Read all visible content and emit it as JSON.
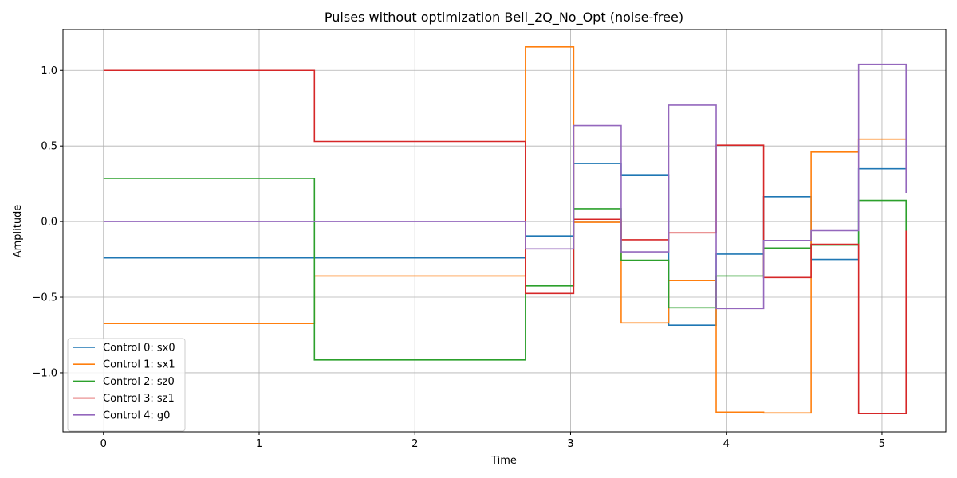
{
  "chart_data": {
    "type": "line",
    "step": "post",
    "title": "Pulses without optimization Bell_2Q_No_Opt (noise-free)",
    "xlabel": "Time",
    "ylabel": "Amplitude",
    "xlim": [
      -0.26,
      5.41
    ],
    "ylim": [
      -1.39,
      1.27
    ],
    "xticks": [
      0,
      1,
      2,
      3,
      4,
      5
    ],
    "yticks": [
      -1.0,
      -0.5,
      0.0,
      0.5,
      1.0
    ],
    "ytick_labels": [
      "−1.0",
      "−0.5",
      "0.0",
      "0.5",
      "1.0"
    ],
    "grid": true,
    "legend_position": "lower-left",
    "x": [
      0,
      1.355,
      2.71,
      3.02,
      3.325,
      3.63,
      3.935,
      4.24,
      4.545,
      4.85,
      5.155
    ],
    "series": [
      {
        "name": "Control 0: sx0",
        "color": "#1f77b4",
        "values": [
          -0.24,
          -0.24,
          -0.095,
          0.385,
          0.305,
          -0.685,
          -0.215,
          0.165,
          -0.25,
          0.35,
          0.35
        ]
      },
      {
        "name": "Control 1: sx1",
        "color": "#ff7f0e",
        "values": [
          -0.675,
          -0.36,
          1.155,
          -0.005,
          -0.67,
          -0.39,
          -1.26,
          -1.265,
          0.46,
          0.545,
          0.545
        ]
      },
      {
        "name": "Control 2: sz0",
        "color": "#2ca02c",
        "values": [
          0.285,
          -0.915,
          -0.425,
          0.085,
          -0.255,
          -0.57,
          -0.36,
          -0.175,
          -0.155,
          0.14,
          -0.06
        ]
      },
      {
        "name": "Control 3: sz1",
        "color": "#d62728",
        "values": [
          1.0,
          0.53,
          -0.475,
          0.015,
          -0.12,
          -0.075,
          0.505,
          -0.37,
          -0.15,
          -1.27,
          -0.06
        ]
      },
      {
        "name": "Control 4: g0",
        "color": "#9467bd",
        "values": [
          0.0,
          0.0,
          -0.18,
          0.635,
          -0.2,
          0.77,
          -0.575,
          -0.125,
          -0.06,
          1.04,
          0.19
        ]
      }
    ]
  }
}
